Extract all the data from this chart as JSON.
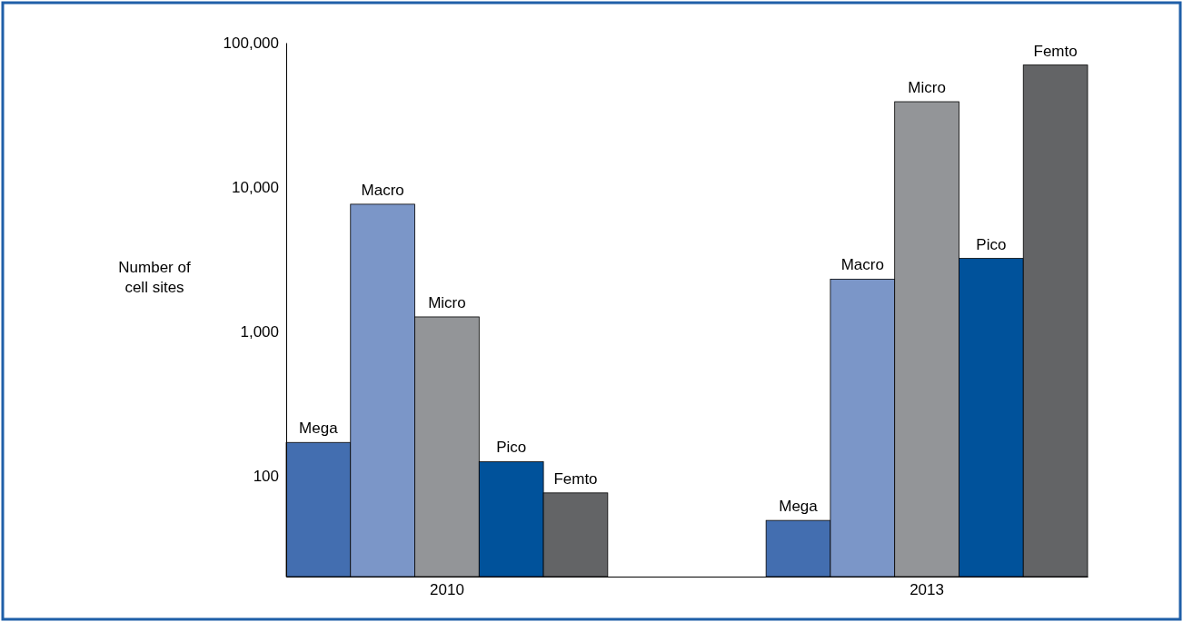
{
  "chart_data": {
    "type": "bar",
    "ylabel": "Number of cell sites",
    "categories": [
      "2010",
      "2013"
    ],
    "series": [
      {
        "name": "Mega",
        "color": "#436eb0",
        "values": [
          170,
          49
        ]
      },
      {
        "name": "Macro",
        "color": "#7b96c8",
        "values": [
          7600,
          2300
        ]
      },
      {
        "name": "Micro",
        "color": "#939598",
        "values": [
          1260,
          39000
        ]
      },
      {
        "name": "Pico",
        "color": "#00529b",
        "values": [
          125,
          3200
        ]
      },
      {
        "name": "Femto",
        "color": "#636466",
        "values": [
          76,
          70000
        ]
      }
    ],
    "log": true,
    "ylim": [
      20,
      100000
    ],
    "yticks": [
      {
        "value": 100,
        "label": "100"
      },
      {
        "value": 1000,
        "label": "1,000"
      },
      {
        "value": 10000,
        "label": "10,000"
      },
      {
        "value": 100000,
        "label": "100,000"
      }
    ],
    "grid": false,
    "legend": false
  }
}
